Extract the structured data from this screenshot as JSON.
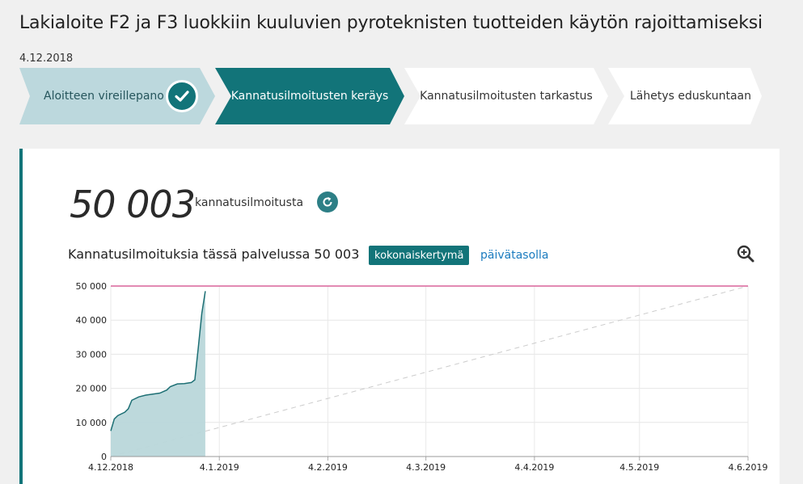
{
  "header": {
    "title": "Lakialoite F2 ja F3 luokkiin kuuluvien pyroteknisten tuotteiden käytön rajoittamiseksi",
    "date": "4.12.2018"
  },
  "steps": [
    {
      "label": "Aloitteen vireillepano",
      "state": "done"
    },
    {
      "label": "Kannatusilmoitusten keräys",
      "state": "active"
    },
    {
      "label": "Kannatusilmoitusten tarkastus",
      "state": "pending"
    },
    {
      "label": "Lähetys eduskuntaan",
      "state": "pending"
    }
  ],
  "summary": {
    "count": "50 003",
    "count_label": "kannatusilmoitusta",
    "refresh_icon": "refresh-icon"
  },
  "chart_header": {
    "title": "Kannatusilmoituksia tässä palvelussa 50 003",
    "toggle_active": "kokonaiskertymä",
    "toggle_inactive": "päivätasolla",
    "zoom_icon": "zoom-in-icon"
  },
  "colors": {
    "accent": "#127479",
    "step_done": "#bcd8dd",
    "goal_line": "#d9649a",
    "area_fill": "#b9d7da",
    "area_line": "#1d6f74"
  },
  "chart_data": {
    "type": "area",
    "x_ticks": [
      "4.12.2018",
      "4.1.2019",
      "4.2.2019",
      "4.3.2019",
      "4.4.2019",
      "4.5.2019",
      "4.6.2019"
    ],
    "y_ticks": [
      "0",
      "10 000",
      "20 000",
      "30 000",
      "40 000",
      "50 000"
    ],
    "ylim": [
      0,
      50000
    ],
    "goal": 50000,
    "series": [
      {
        "points": [
          [
            "2018-12-04",
            7500
          ],
          [
            "2018-12-05",
            11000
          ],
          [
            "2018-12-06",
            12000
          ],
          [
            "2018-12-08",
            13000
          ],
          [
            "2018-12-09",
            14000
          ],
          [
            "2018-12-10",
            16500
          ],
          [
            "2018-12-12",
            17500
          ],
          [
            "2018-12-14",
            18000
          ],
          [
            "2018-12-16",
            18300
          ],
          [
            "2018-12-18",
            18600
          ],
          [
            "2018-12-20",
            19500
          ],
          [
            "2018-12-21",
            20500
          ],
          [
            "2018-12-23",
            21300
          ],
          [
            "2018-12-25",
            21400
          ],
          [
            "2018-12-27",
            21700
          ],
          [
            "2018-12-28",
            22500
          ],
          [
            "2018-12-29",
            32000
          ],
          [
            "2018-12-30",
            42000
          ],
          [
            "2018-12-31",
            48500
          ]
        ]
      }
    ],
    "pace_line": [
      [
        "2018-12-04",
        0
      ],
      [
        "2019-06-04",
        50000
      ]
    ]
  }
}
